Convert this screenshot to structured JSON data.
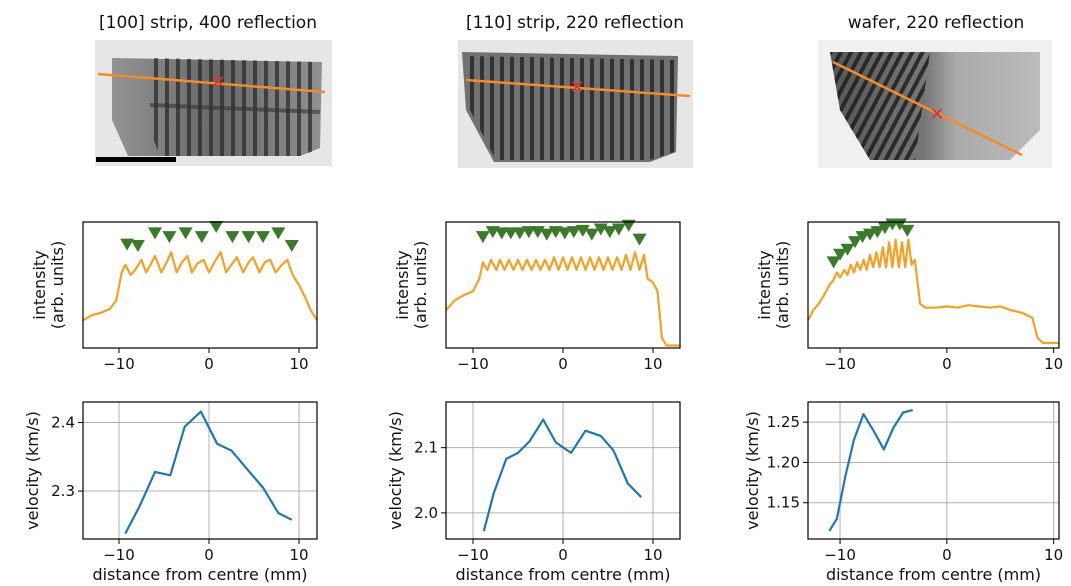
{
  "colors": {
    "intensity_line": "#f5a025",
    "velocity_line": "#1f77b4",
    "peak_marker": "#3a7a2a",
    "probe_line": "#f28c28",
    "center_marker": "#e03030",
    "grid": "#b0b0b0",
    "image_background": "#e8e8e8"
  },
  "panels": [
    {
      "title": "[100] strip, 400 reflection",
      "image_description": "x-ray topograph of strip with vertical fringes",
      "scale_bar": true
    },
    {
      "title": "[110] strip, 220 reflection",
      "image_description": "x-ray topograph of strip with vertical fringes",
      "scale_bar": false
    },
    {
      "title": "wafer, 220 reflection",
      "image_description": "x-ray topograph of wafer with diagonal fringes",
      "scale_bar": false
    }
  ],
  "chart_data": [
    {
      "type": "line",
      "panel": "[100] strip, 400 reflection",
      "ylabel": "intensity\n(arb. units)",
      "xlim": [
        -14,
        12
      ],
      "ylim": [
        0,
        1
      ],
      "xticks": [
        -10,
        0,
        10
      ],
      "grid": false,
      "series": [
        {
          "x": [
            -14,
            -13,
            -12,
            -11,
            -10.3,
            -9.7,
            -9.3,
            -8.7,
            -8.2,
            -7.5,
            -7.0,
            -6.5,
            -6.0,
            -5.3,
            -4.7,
            -4.2,
            -3.6,
            -3.0,
            -2.4,
            -1.9,
            -1.3,
            -0.6,
            0,
            0.6,
            1.3,
            1.9,
            2.5,
            3.1,
            3.8,
            4.4,
            4.9,
            5.6,
            6.2,
            6.8,
            7.4,
            8.1,
            8.7,
            9.3,
            10.0,
            10.7,
            11.3,
            12
          ],
          "y": [
            0.22,
            0.26,
            0.28,
            0.31,
            0.38,
            0.6,
            0.66,
            0.58,
            0.62,
            0.7,
            0.6,
            0.66,
            0.73,
            0.6,
            0.68,
            0.76,
            0.6,
            0.68,
            0.73,
            0.6,
            0.67,
            0.7,
            0.6,
            0.68,
            0.76,
            0.6,
            0.66,
            0.72,
            0.6,
            0.68,
            0.72,
            0.6,
            0.68,
            0.7,
            0.6,
            0.66,
            0.7,
            0.58,
            0.5,
            0.4,
            0.3,
            0.22
          ]
        }
      ],
      "markers": {
        "x": [
          -9.1,
          -7.9,
          -6.0,
          -4.4,
          -2.6,
          -0.8,
          0.8,
          2.6,
          4.4,
          6.0,
          7.7,
          9.2
        ],
        "y": [
          0.82,
          0.81,
          0.91,
          0.88,
          0.91,
          0.88,
          0.96,
          0.88,
          0.88,
          0.88,
          0.91,
          0.81
        ]
      }
    },
    {
      "type": "line",
      "panel": "[110] strip, 220 reflection",
      "ylabel": "intensity\n(arb. units)",
      "xlim": [
        -13,
        13
      ],
      "ylim": [
        0,
        1
      ],
      "xticks": [
        -10,
        0,
        10
      ],
      "grid": false,
      "series": [
        {
          "x": [
            -13,
            -12,
            -11,
            -10,
            -9.3,
            -8.9,
            -8.4,
            -8.0,
            -7.4,
            -7.0,
            -6.5,
            -6.0,
            -5.5,
            -5.0,
            -4.5,
            -4.0,
            -3.5,
            -3.0,
            -2.5,
            -2.0,
            -1.5,
            -1.0,
            -0.5,
            0,
            0.5,
            1.0,
            1.5,
            2.0,
            2.5,
            3.0,
            3.5,
            4.0,
            4.5,
            5.0,
            5.5,
            6.0,
            6.5,
            7.0,
            7.5,
            8.0,
            8.5,
            9.0,
            9.4,
            10.0,
            10.5,
            11.0,
            11.5,
            12,
            13
          ],
          "y": [
            0.3,
            0.38,
            0.42,
            0.45,
            0.55,
            0.68,
            0.62,
            0.7,
            0.62,
            0.7,
            0.62,
            0.7,
            0.62,
            0.7,
            0.62,
            0.7,
            0.62,
            0.7,
            0.62,
            0.7,
            0.62,
            0.72,
            0.62,
            0.72,
            0.62,
            0.72,
            0.62,
            0.72,
            0.62,
            0.72,
            0.62,
            0.72,
            0.62,
            0.72,
            0.62,
            0.72,
            0.62,
            0.74,
            0.62,
            0.76,
            0.62,
            0.74,
            0.55,
            0.52,
            0.45,
            0.08,
            0.02,
            0.02,
            0.02
          ]
        }
      ],
      "markers": {
        "x": [
          -8.9,
          -7.8,
          -6.8,
          -5.8,
          -4.8,
          -3.8,
          -2.8,
          -1.8,
          -0.8,
          0.2,
          1.2,
          2.2,
          3.2,
          4.2,
          5.2,
          6.2,
          7.3,
          8.5
        ],
        "y": [
          0.88,
          0.92,
          0.91,
          0.91,
          0.91,
          0.92,
          0.92,
          0.9,
          0.92,
          0.91,
          0.92,
          0.93,
          0.9,
          0.94,
          0.92,
          0.94,
          0.97,
          0.86
        ]
      }
    },
    {
      "type": "line",
      "panel": "wafer, 220 reflection",
      "ylabel": "intensity\n(arb. units)",
      "xlim": [
        -13,
        10.5
      ],
      "ylim": [
        0,
        1
      ],
      "xticks": [
        -10,
        0,
        10
      ],
      "grid": false,
      "series": [
        {
          "x": [
            -13,
            -12.5,
            -12,
            -11.5,
            -11,
            -10.6,
            -10.3,
            -10,
            -9.6,
            -9.3,
            -9.0,
            -8.7,
            -8.4,
            -8.1,
            -7.8,
            -7.5,
            -7.2,
            -6.9,
            -6.6,
            -6.3,
            -6.0,
            -5.7,
            -5.4,
            -5.1,
            -4.8,
            -4.5,
            -4.2,
            -3.9,
            -3.6,
            -3.3,
            -3.0,
            -2.5,
            -2,
            -1,
            0,
            1,
            2,
            3,
            4,
            5,
            6,
            7,
            8,
            8.5,
            9,
            9.5,
            10,
            10.5
          ],
          "y": [
            0.22,
            0.3,
            0.35,
            0.42,
            0.5,
            0.54,
            0.6,
            0.56,
            0.62,
            0.58,
            0.66,
            0.6,
            0.68,
            0.62,
            0.7,
            0.62,
            0.74,
            0.64,
            0.76,
            0.64,
            0.8,
            0.64,
            0.84,
            0.64,
            0.86,
            0.64,
            0.84,
            0.64,
            0.86,
            0.66,
            0.7,
            0.35,
            0.32,
            0.32,
            0.33,
            0.32,
            0.34,
            0.33,
            0.32,
            0.33,
            0.3,
            0.28,
            0.24,
            0.08,
            0.04,
            0.04,
            0.04,
            0.04
          ]
        }
      ],
      "markers": {
        "x": [
          -10.6,
          -10.0,
          -9.3,
          -8.6,
          -7.9,
          -7.2,
          -6.5,
          -5.8,
          -5.1,
          -4.4,
          -3.7
        ],
        "y": [
          0.68,
          0.74,
          0.78,
          0.84,
          0.88,
          0.9,
          0.92,
          0.95,
          0.98,
          0.98,
          0.93
        ]
      }
    },
    {
      "type": "line",
      "panel": "[100] strip, 400 reflection",
      "xlabel": "distance from centre (mm)",
      "ylabel": "velocity (km/s)",
      "xlim": [
        -14,
        12
      ],
      "ylim": [
        2.23,
        2.43
      ],
      "xticks": [
        -10,
        0,
        10
      ],
      "yticks": [
        2.3,
        2.4
      ],
      "grid": true,
      "series": [
        {
          "x": [
            -9.3,
            -7.7,
            -6.0,
            -4.3,
            -2.7,
            -0.9,
            0.9,
            2.5,
            4.3,
            6.0,
            7.7,
            9.2
          ],
          "y": [
            2.238,
            2.278,
            2.328,
            2.323,
            2.394,
            2.416,
            2.369,
            2.359,
            2.331,
            2.305,
            2.268,
            2.258
          ]
        }
      ]
    },
    {
      "type": "line",
      "panel": "[110] strip, 220 reflection",
      "xlabel": "distance from centre (mm)",
      "ylabel": "velocity (km/s)",
      "xlim": [
        -13,
        13
      ],
      "ylim": [
        1.96,
        2.17
      ],
      "xticks": [
        -10,
        0,
        10
      ],
      "yticks": [
        2.0,
        2.1
      ],
      "grid": true,
      "series": [
        {
          "x": [
            -8.8,
            -7.7,
            -6.3,
            -5.0,
            -3.7,
            -2.2,
            -0.8,
            0.9,
            2.5,
            4.2,
            5.6,
            7.2,
            8.7
          ],
          "y": [
            1.972,
            2.03,
            2.083,
            2.092,
            2.11,
            2.143,
            2.108,
            2.092,
            2.126,
            2.118,
            2.096,
            2.045,
            2.024
          ]
        }
      ]
    },
    {
      "type": "line",
      "panel": "wafer, 220 reflection",
      "xlabel": "distance from centre (mm)",
      "ylabel": "velocity (km/s)",
      "xlim": [
        -13,
        10.5
      ],
      "ylim": [
        1.105,
        1.275
      ],
      "xticks": [
        -10,
        0,
        10
      ],
      "yticks": [
        1.15,
        1.2,
        1.25
      ],
      "grid": true,
      "series": [
        {
          "x": [
            -11.0,
            -10.3,
            -9.5,
            -8.7,
            -7.8,
            -6.8,
            -5.9,
            -5.0,
            -4.1,
            -3.2
          ],
          "y": [
            1.115,
            1.13,
            1.183,
            1.228,
            1.26,
            1.238,
            1.216,
            1.243,
            1.262,
            1.265
          ]
        }
      ]
    }
  ]
}
